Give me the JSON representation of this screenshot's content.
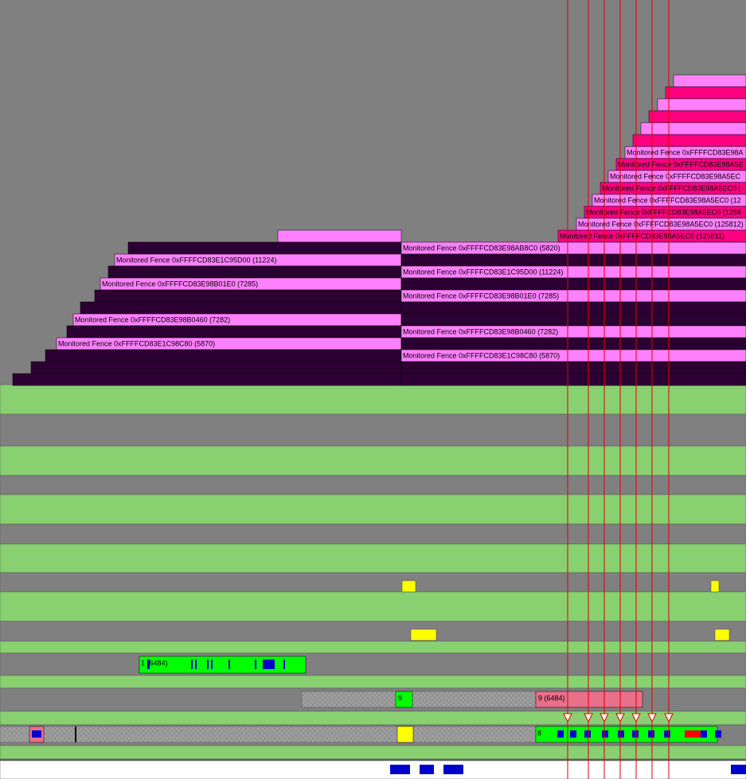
{
  "left_fences": [
    "Monitored Fence 0xFFFFCD83E1C95D00 (11224)",
    "Monitored Fence 0xFFFFCD83E98B01E0 (7285)",
    "Monitored Fence 0xFFFFCD83E98B0460 (7282)",
    "Monitored Fence 0xFFFFCD83E1C98C80 (5870)"
  ],
  "mid_fences": [
    "Monitored Fence 0xFFFFCD83E98AB8C0 (5820)",
    "Monitored Fence 0xFFFFCD83E1C95D00 (11224)",
    "Monitored Fence 0xFFFFCD83E98B01E0 (7285)",
    "Monitored Fence 0xFFFFCD83E98B0460 (7282)",
    "Monitored Fence 0xFFFFCD83E1C98C80 (5870)"
  ],
  "top_fences": [
    "Monitored Fence 0xFFFFCD83E98A",
    "Monitored Fence 0xFFFFCD83E98A5E",
    "Monitored Fence 0xFFFFCD83E98A5EC",
    "Monitored Fence 0xFFFFCD83E98A5EC0 (",
    "Monitored Fence 0xFFFFCD83E98A5EC0 (12",
    "Monitored Fence 0xFFFFCD83E98A5EC0 (1268",
    "Monitored Fence 0xFFFFCD83E98A5EC0 (125812)",
    "Monitored Fence 0xFFFFCD83E98A5EC0 (125811)"
  ],
  "packets": [
    "1 (6484)",
    "9",
    "9 (6484)",
    "8"
  ]
}
